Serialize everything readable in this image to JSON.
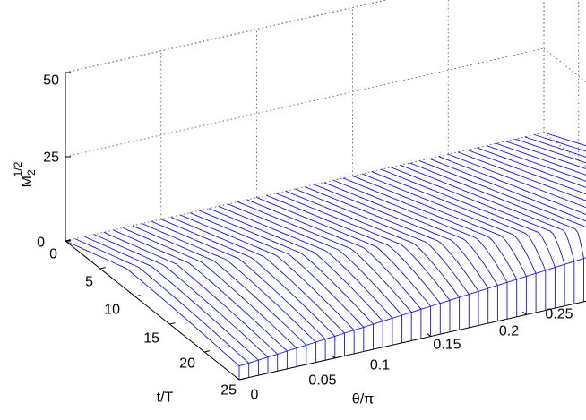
{
  "chart_data": {
    "type": "surface-3d",
    "xlabel": "θ/π",
    "ylabel": "t/T",
    "zlabel_base": "M",
    "zlabel_sub": "2",
    "zlabel_sup": "1/2",
    "xlim": [
      0,
      0.25
    ],
    "ylim": [
      0,
      25
    ],
    "zlim": [
      0,
      50
    ],
    "x_ticks": [
      "0",
      "0.05",
      "0.1",
      "0.15",
      "0.2",
      "0.25"
    ],
    "y_ticks": [
      "0",
      "5",
      "10",
      "15",
      "20",
      "25"
    ],
    "z_ticks": [
      "0",
      "25",
      "50"
    ],
    "theta_values": [
      0,
      0.005,
      0.01,
      0.015,
      0.02,
      0.025,
      0.03,
      0.035,
      0.04,
      0.045,
      0.05,
      0.055,
      0.06,
      0.065,
      0.07,
      0.075,
      0.08,
      0.085,
      0.09,
      0.095,
      0.1,
      0.105,
      0.11,
      0.115,
      0.12,
      0.125,
      0.13,
      0.135,
      0.14,
      0.145,
      0.15,
      0.155,
      0.16,
      0.165,
      0.17,
      0.175,
      0.18,
      0.185,
      0.19,
      0.195,
      0.2,
      0.205,
      0.21,
      0.215,
      0.22,
      0.225,
      0.23,
      0.235,
      0.24,
      0.245,
      0.25
    ],
    "max_value_at_t25": 25,
    "grid": true
  }
}
